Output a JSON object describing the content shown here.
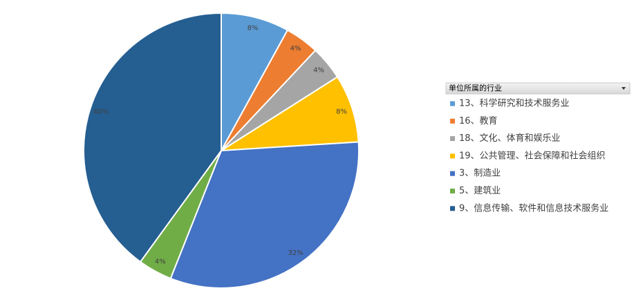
{
  "chart_data": {
    "type": "pie",
    "legend_title": "单位所属的行业",
    "categories": [
      "13、科学研究和技术服务业",
      "16、教育",
      "18、文化、体育和娱乐业",
      "19、公共管理、社会保障和社会组织",
      "3、制造业",
      "5、建筑业",
      "9、信息传输、软件和信息技术服务业"
    ],
    "values": [
      8,
      4,
      4,
      8,
      32,
      4,
      40
    ],
    "value_labels": [
      "8%",
      "4%",
      "4%",
      "8%",
      "32%",
      "4%",
      "40%"
    ],
    "colors": [
      "#5b9bd5",
      "#ed7d31",
      "#a5a5a5",
      "#ffc000",
      "#4472c4",
      "#70ad47",
      "#255e91"
    ],
    "legend": "right"
  }
}
